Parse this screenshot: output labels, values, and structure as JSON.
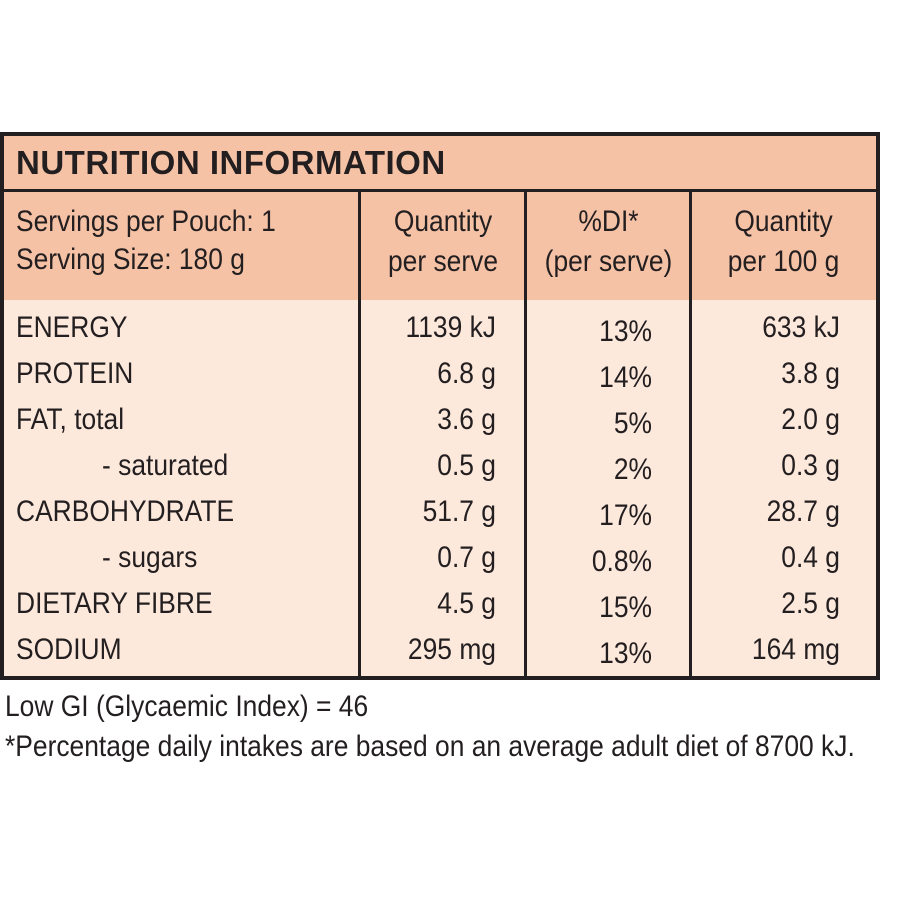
{
  "title": "NUTRITION INFORMATION",
  "header": {
    "servings_per_pouch": "Servings per Pouch: 1",
    "serving_size": "Serving Size: 180 g",
    "col_quantity_serve_line1": "Quantity",
    "col_quantity_serve_line2": "per serve",
    "col_di_line1": "%DI*",
    "col_di_line2": "(per serve)",
    "col_quantity_100g_line1": "Quantity",
    "col_quantity_100g_line2": "per 100 g"
  },
  "rows": [
    {
      "name": "ENERGY",
      "per_serve": "1139 kJ",
      "di": "13%",
      "per_100g": "633 kJ"
    },
    {
      "name": "PROTEIN",
      "per_serve": "6.8 g",
      "di": "14%",
      "per_100g": "3.8 g"
    },
    {
      "name": "FAT, total",
      "per_serve": "3.6 g",
      "di": "5%",
      "per_100g": "2.0 g"
    },
    {
      "name": "- saturated",
      "per_serve": "0.5 g",
      "di": "2%",
      "per_100g": "0.3 g"
    },
    {
      "name": "CARBOHYDRATE",
      "per_serve": "51.7 g",
      "di": "17%",
      "per_100g": "28.7 g"
    },
    {
      "name": "- sugars",
      "per_serve": "0.7 g",
      "di": "0.8%",
      "per_100g": "0.4 g"
    },
    {
      "name": "DIETARY FIBRE",
      "per_serve": "4.5 g",
      "di": "15%",
      "per_100g": "2.5 g"
    },
    {
      "name": "SODIUM",
      "per_serve": "295 mg",
      "di": "13%",
      "per_100g": "164 mg"
    }
  ],
  "footer": {
    "gi_note": "Low GI (Glycaemic Index) = 46",
    "di_note": "*Percentage daily intakes are based on an average adult diet of 8700 kJ."
  }
}
